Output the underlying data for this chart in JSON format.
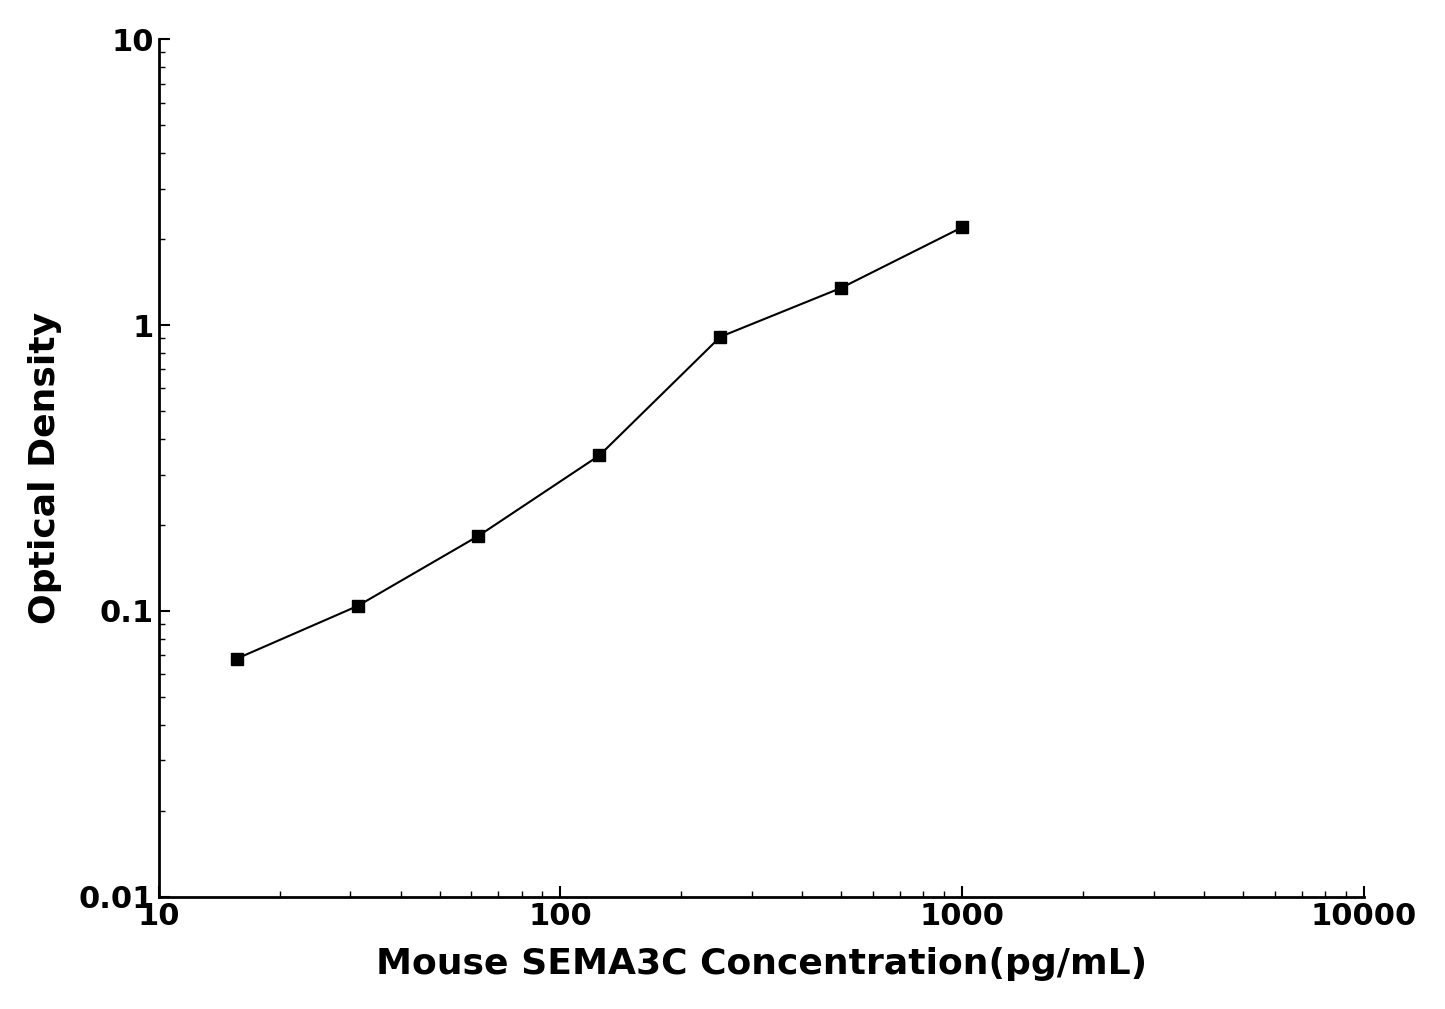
{
  "x": [
    15.625,
    31.25,
    62.5,
    125,
    250,
    500,
    1000
  ],
  "y": [
    0.068,
    0.104,
    0.183,
    0.35,
    0.91,
    1.35,
    2.2
  ],
  "xlim": [
    10,
    10000
  ],
  "ylim": [
    0.01,
    10
  ],
  "xlabel": "Mouse SEMA3C Concentration(pg/mL)",
  "ylabel": "Optical Density",
  "line_color": "#000000",
  "marker": "s",
  "marker_size": 9,
  "marker_color": "#000000",
  "line_width": 1.5,
  "xlabel_fontsize": 26,
  "ylabel_fontsize": 26,
  "tick_fontsize": 22,
  "background_color": "#ffffff",
  "ytick_labels": [
    "0.01",
    "0.1",
    "1",
    "10"
  ],
  "ytick_values": [
    0.01,
    0.1,
    1,
    10
  ],
  "xtick_labels": [
    "10",
    "100",
    "1000",
    "10000"
  ],
  "xtick_values": [
    10,
    100,
    1000,
    10000
  ]
}
